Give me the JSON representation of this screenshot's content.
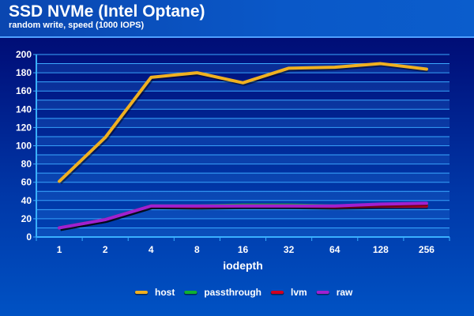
{
  "chart_data": {
    "type": "line",
    "title": "SSD NVMe (Intel Optane)",
    "subtitle": "random write, speed (1000 IOPS)",
    "xlabel": "iodepth",
    "ylabel": "",
    "categories": [
      "1",
      "2",
      "4",
      "8",
      "16",
      "32",
      "64",
      "128",
      "256"
    ],
    "ylim": [
      0,
      200
    ],
    "yticks": [
      0,
      20,
      40,
      60,
      80,
      100,
      120,
      140,
      160,
      180,
      200
    ],
    "grid": true,
    "legend_position": "bottom",
    "series": [
      {
        "name": "host",
        "color": "#f0b020",
        "values": [
          61,
          109,
          175,
          180,
          169,
          185,
          186,
          190,
          184
        ]
      },
      {
        "name": "passthrough",
        "color": "#10b030",
        "values": [
          10,
          19,
          34,
          34,
          35,
          35,
          34,
          35,
          36
        ]
      },
      {
        "name": "lvm",
        "color": "#d00020",
        "values": [
          10,
          19,
          34,
          33,
          34,
          34,
          33,
          34,
          34
        ]
      },
      {
        "name": "raw",
        "color": "#a020d0",
        "values": [
          10,
          19,
          34,
          34,
          34,
          34,
          34,
          36,
          37
        ]
      }
    ]
  }
}
